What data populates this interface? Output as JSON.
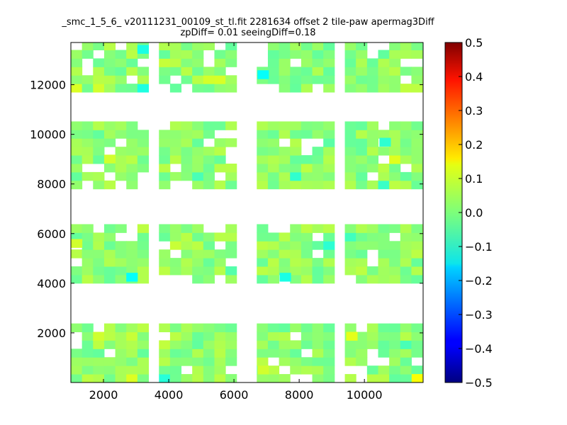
{
  "chart_data": {
    "type": "heatmap",
    "title": "_smc_1_5_6_ v20111231_00109_st_tl.fit 2281634 offset 2 tile-paw apermag3Diff",
    "subtitle": "zpDiff= 0.01 seeingDiff=0.18",
    "xlabel": "",
    "ylabel": "",
    "xlim": [
      1000,
      11800
    ],
    "ylim": [
      0,
      13700
    ],
    "x_ticks": [
      "2000",
      "4000",
      "6000",
      "8000",
      "10000"
    ],
    "y_ticks": [
      "2000",
      "4000",
      "6000",
      "8000",
      "10000",
      "12000"
    ],
    "bin_size": 340,
    "colormap": "jet",
    "clim": [
      -0.5,
      0.5
    ],
    "colorbar_ticks": [
      "0.5",
      "0.4",
      "0.3",
      "0.2",
      "0.1",
      "0.0",
      "−0.1",
      "−0.2",
      "−0.3",
      "−0.4",
      "−0.5"
    ],
    "grid": false,
    "tile_columns_x": [
      [
        1000,
        3300
      ],
      [
        3700,
        6000
      ],
      [
        6700,
        9000
      ],
      [
        9400,
        11800
      ]
    ],
    "tile_rows_y": [
      [
        0,
        2200
      ],
      [
        4000,
        6200
      ],
      [
        7800,
        10200
      ],
      [
        11700,
        13700
      ]
    ],
    "typical_value_range": [
      -0.1,
      0.1
    ],
    "notable_cells": [
      {
        "x": 11620,
        "y": 170,
        "value": 0.12
      },
      {
        "x": 9610,
        "y": 1870,
        "value": 0.1
      },
      {
        "x": 6890,
        "y": 510,
        "value": 0.08
      },
      {
        "x": 1170,
        "y": 5610,
        "value": 0.08
      },
      {
        "x": 2190,
        "y": 9010,
        "value": 0.08
      },
      {
        "x": 2870,
        "y": 4250,
        "value": -0.12
      },
      {
        "x": 6890,
        "y": 12410,
        "value": -0.12
      },
      {
        "x": 7570,
        "y": 4250,
        "value": -0.1
      },
      {
        "x": 3210,
        "y": 13430,
        "value": -0.1
      },
      {
        "x": 10630,
        "y": 9690,
        "value": -0.08
      }
    ]
  }
}
